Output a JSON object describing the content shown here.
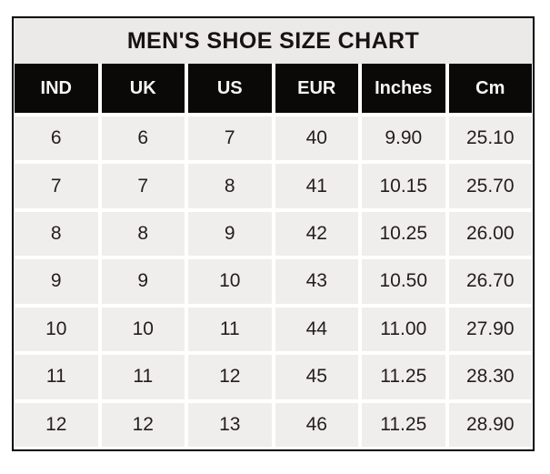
{
  "chart_data": {
    "type": "table",
    "title": "MEN'S SHOE SIZE CHART",
    "columns": [
      "IND",
      "UK",
      "US",
      "EUR",
      "Inches",
      "Cm"
    ],
    "rows": [
      [
        "6",
        "6",
        "7",
        "40",
        "9.90",
        "25.10"
      ],
      [
        "7",
        "7",
        "8",
        "41",
        "10.15",
        "25.70"
      ],
      [
        "8",
        "8",
        "9",
        "42",
        "10.25",
        "26.00"
      ],
      [
        "9",
        "9",
        "10",
        "43",
        "10.50",
        "26.70"
      ],
      [
        "10",
        "10",
        "11",
        "44",
        "11.00",
        "27.90"
      ],
      [
        "11",
        "11",
        "12",
        "45",
        "11.25",
        "28.30"
      ],
      [
        "12",
        "12",
        "13",
        "46",
        "11.25",
        "28.90"
      ]
    ]
  },
  "colors": {
    "border": "#000000",
    "gap": "#ffffff",
    "title_bg": "#eceae8",
    "title_text": "#161312",
    "header_bg": "#0b0908",
    "header_text": "#f7f6f4",
    "cell_bg": "#f0eeec",
    "cell_text": "#211e1c"
  }
}
